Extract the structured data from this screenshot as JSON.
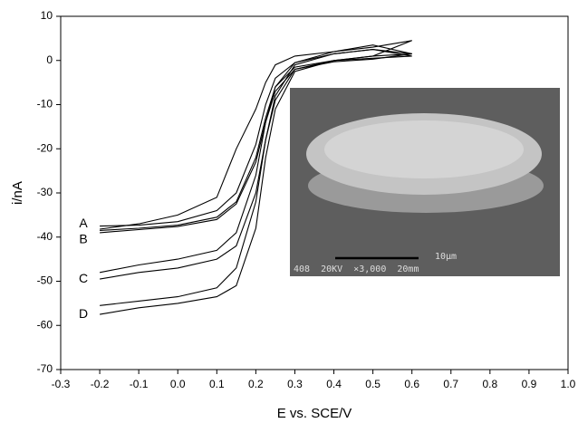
{
  "chart_data": {
    "type": "line",
    "xlabel": "E vs. SCE/V",
    "ylabel": "i/nA",
    "xlim": [
      -0.3,
      1.0
    ],
    "ylim": [
      -70,
      10
    ],
    "xticks": [
      -0.3,
      -0.2,
      -0.1,
      {
        "value": 0,
        "label": "0.0"
      },
      0.1,
      0.2,
      0.3,
      0.4,
      0.5,
      0.6,
      0.7,
      0.8,
      0.9,
      {
        "value": 1,
        "label": "1.0"
      }
    ],
    "yticks": [
      -70,
      -60,
      -50,
      -40,
      -30,
      -20,
      -10,
      0,
      10
    ],
    "annotations": [
      "10μm",
      "408  20KV  ×3,000  20mm"
    ],
    "series": [
      {
        "name": "A",
        "color": "#000000",
        "x": [
          -0.2,
          -0.1,
          0.0,
          0.1,
          0.15,
          0.2,
          0.225,
          0.25,
          0.3,
          0.4,
          0.5,
          0.6,
          0.5,
          0.4,
          0.3,
          0.25,
          0.225,
          0.2,
          0.15,
          0.1,
          0.0,
          -0.1,
          -0.2
        ],
        "values": [
          -38.5,
          -38,
          -37.3,
          -35.5,
          -32,
          -22,
          -13,
          -6,
          -1.5,
          0,
          0.5,
          1,
          2.5,
          1.5,
          -0.5,
          -4,
          -10,
          -19,
          -30,
          -34,
          -36.5,
          -37.3,
          -37.5
        ]
      },
      {
        "name": "B",
        "color": "#000000",
        "x": [
          -0.2,
          -0.1,
          0.0,
          0.1,
          0.15,
          0.2,
          0.225,
          0.25,
          0.3,
          0.4,
          0.5,
          0.6,
          0.5,
          0.4,
          0.3,
          0.25,
          0.225,
          0.2,
          0.15,
          0.1,
          0.0,
          -0.1,
          -0.2
        ],
        "values": [
          -39,
          -38.3,
          -37.6,
          -36,
          -32.5,
          -23,
          -14,
          -7,
          -2,
          -0.3,
          0.3,
          1.5,
          3.5,
          2,
          1,
          -1,
          -5,
          -11,
          -20,
          -31,
          -35,
          -37,
          -38.2
        ]
      },
      {
        "name": "C",
        "color": "#000000",
        "x": [
          -0.2,
          -0.1,
          0.0,
          0.1,
          0.15,
          0.2,
          0.225,
          0.25,
          0.3,
          0.4,
          0.5,
          0.6,
          0.5,
          0.4,
          0.3,
          0.25,
          0.225,
          0.2,
          0.15,
          0.1,
          0.0,
          -0.1,
          -0.2
        ],
        "values": [
          -49.5,
          -48,
          -47,
          -45,
          -42,
          -30,
          -18,
          -9,
          -2,
          0,
          1,
          4.5,
          3,
          2,
          -0.5,
          -6,
          -14,
          -26,
          -39,
          -43,
          -45,
          -46.3,
          -48
        ]
      },
      {
        "name": "D",
        "color": "#000000",
        "x": [
          -0.2,
          -0.1,
          0.0,
          0.1,
          0.15,
          0.2,
          0.225,
          0.25,
          0.3,
          0.4,
          0.5,
          0.6,
          0.5,
          0.4,
          0.3,
          0.25,
          0.225,
          0.2,
          0.15,
          0.1,
          0.0,
          -0.1,
          -0.2
        ],
        "values": [
          -57.5,
          -56,
          -55,
          -53.5,
          -51,
          -38,
          -22,
          -11,
          -2.5,
          0,
          1,
          1.5,
          2.5,
          1.5,
          -1,
          -8,
          -18,
          -32,
          -47,
          -51.5,
          -53.5,
          -54.5,
          -55.5
        ]
      }
    ]
  }
}
